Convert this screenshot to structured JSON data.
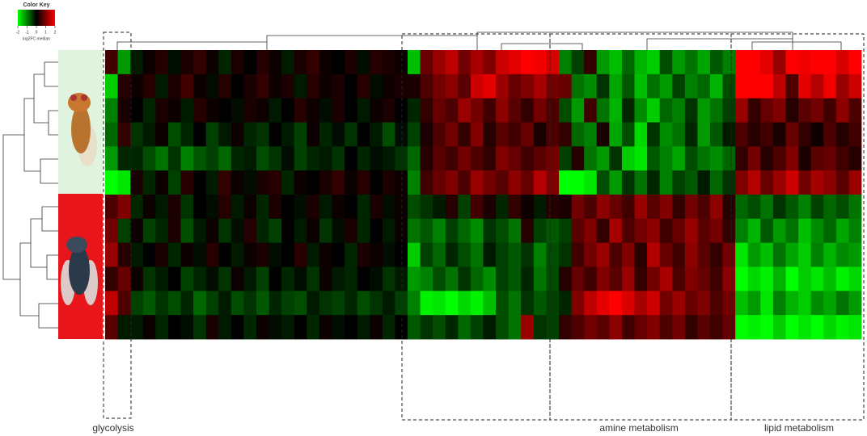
{
  "chart_data": {
    "type": "heatmap",
    "title": "Color Key",
    "colorbar_label": "log2FC median",
    "clim": [
      -2,
      2
    ],
    "cticks": [
      -2,
      -1,
      0,
      1,
      2
    ],
    "colors": {
      "low": "#00ff00",
      "mid": "#000000",
      "high": "#ff0000"
    },
    "annotations": [
      "glycolysis",
      "amine metabolism",
      "lipid metabolism"
    ],
    "matrix": [
      [
        0.5,
        -1.2,
        -0.2,
        0.1,
        0.3,
        -0.1,
        0.2,
        0.4,
        0.1,
        -0.3,
        0.2,
        0.0,
        0.3,
        0.1,
        -0.2,
        0.2,
        0.4,
        0.1,
        0.0,
        0.2,
        -0.1,
        0.3,
        0.2,
        0.1,
        -1.5,
        0.8,
        1.2,
        1.5,
        0.9,
        1.3,
        1.0,
        1.6,
        1.8,
        2.0,
        1.9,
        1.7,
        -1.0,
        -0.5,
        0.4,
        -1.2,
        -1.5,
        -0.8,
        -1.4,
        -1.6,
        -0.6,
        -1.2,
        -0.9,
        -1.3,
        -0.7,
        -1.0,
        2.0,
        2.0,
        1.8,
        1.2,
        2.0,
        1.9,
        2.0,
        2.0,
        1.7,
        2.0
      ],
      [
        -1.6,
        0.3,
        0.1,
        0.3,
        -0.2,
        0.2,
        0.5,
        0.1,
        -0.1,
        0.3,
        0.0,
        0.2,
        0.4,
        0.1,
        0.2,
        -0.2,
        0.3,
        0.1,
        0.2,
        0.0,
        0.3,
        -0.1,
        0.1,
        0.2,
        0.2,
        0.6,
        0.9,
        1.1,
        0.7,
        1.6,
        1.8,
        1.2,
        0.8,
        1.0,
        1.3,
        0.9,
        0.8,
        -0.9,
        -1.1,
        -0.4,
        -1.3,
        -0.7,
        -1.5,
        -0.9,
        -1.2,
        -0.5,
        -1.0,
        -0.8,
        -1.4,
        -0.6,
        2.0,
        2.0,
        2.0,
        1.5,
        0.6,
        1.8,
        1.4,
        1.9,
        1.2,
        1.6
      ],
      [
        -1.0,
        0.2,
        0.0,
        -0.3,
        0.2,
        0.1,
        -0.2,
        0.3,
        0.1,
        0.0,
        -0.1,
        0.2,
        0.1,
        -0.2,
        0.0,
        0.3,
        0.1,
        -0.1,
        0.2,
        0.0,
        -0.2,
        0.1,
        0.2,
        0.0,
        -0.3,
        0.4,
        0.8,
        0.6,
        1.2,
        0.9,
        0.5,
        1.1,
        0.7,
        0.4,
        0.9,
        0.6,
        -0.6,
        -1.2,
        0.5,
        -0.9,
        -1.4,
        -0.3,
        -1.1,
        -1.6,
        -0.8,
        -1.0,
        -0.4,
        -1.2,
        -0.9,
        -0.5,
        1.2,
        0.4,
        0.8,
        1.0,
        0.3,
        0.7,
        0.9,
        0.5,
        1.1,
        0.6
      ],
      [
        -0.8,
        0.4,
        -0.4,
        -0.2,
        0.1,
        -0.6,
        -0.3,
        0.0,
        -0.5,
        -0.2,
        0.1,
        -0.3,
        -0.4,
        0.0,
        -0.2,
        -0.5,
        0.1,
        -0.3,
        -0.1,
        -0.4,
        0.0,
        -0.2,
        -0.6,
        -0.1,
        -0.5,
        0.2,
        0.6,
        0.9,
        0.4,
        1.0,
        0.3,
        0.7,
        0.5,
        0.8,
        0.2,
        0.6,
        0.4,
        -0.8,
        -1.0,
        0.2,
        -1.3,
        -0.6,
        -1.7,
        -0.4,
        -1.1,
        -0.9,
        -0.3,
        -1.2,
        -0.7,
        -0.2,
        0.6,
        0.3,
        0.5,
        0.2,
        0.8,
        0.4,
        0.1,
        0.6,
        0.3,
        0.5
      ],
      [
        -1.2,
        -0.3,
        -0.3,
        -0.6,
        -0.9,
        -0.4,
        -1.0,
        -0.7,
        -0.5,
        -0.8,
        -0.3,
        -0.2,
        -0.6,
        -0.4,
        -0.1,
        -0.5,
        -0.3,
        -0.2,
        -0.4,
        0.0,
        -0.3,
        -0.1,
        -0.2,
        -0.4,
        -0.8,
        0.3,
        0.7,
        0.5,
        0.9,
        0.6,
        0.4,
        1.0,
        0.8,
        0.5,
        0.7,
        0.9,
        -0.5,
        0.3,
        -0.9,
        -1.2,
        -0.4,
        -1.6,
        -1.8,
        -0.7,
        -1.0,
        -1.3,
        -0.6,
        -0.9,
        -1.1,
        -0.8,
        0.4,
        0.9,
        0.3,
        0.6,
        1.0,
        0.2,
        0.7,
        0.8,
        0.5,
        0.3
      ],
      [
        -2.0,
        -1.8,
        0.2,
        -0.3,
        0.1,
        -0.5,
        0.3,
        0.0,
        -0.2,
        0.4,
        0.1,
        -0.1,
        0.2,
        0.3,
        -0.3,
        0.1,
        0.0,
        0.2,
        0.4,
        0.1,
        0.3,
        0.0,
        0.2,
        0.1,
        -1.0,
        0.5,
        0.8,
        1.0,
        0.6,
        1.2,
        0.9,
        0.7,
        1.1,
        0.8,
        1.4,
        1.0,
        -2.0,
        -2.0,
        -1.8,
        -0.6,
        -1.2,
        -0.4,
        -0.9,
        -0.3,
        -1.0,
        -0.5,
        -0.7,
        -0.2,
        -0.8,
        -0.4,
        1.0,
        1.4,
        0.8,
        1.2,
        1.6,
        0.9,
        1.3,
        1.1,
        0.7,
        1.2
      ],
      [
        0.6,
        1.0,
        -0.3,
        0.1,
        -0.2,
        0.2,
        -0.4,
        0.0,
        -0.1,
        0.3,
        -0.2,
        0.1,
        -0.3,
        0.2,
        0.0,
        -0.1,
        0.2,
        -0.2,
        0.1,
        0.0,
        -0.3,
        0.2,
        -0.1,
        0.1,
        -0.6,
        -0.4,
        -0.2,
        0.3,
        -0.5,
        0.5,
        0.2,
        -0.3,
        0.4,
        0.1,
        -0.2,
        0.3,
        0.2,
        0.9,
        0.6,
        1.1,
        0.8,
        0.5,
        1.2,
        0.7,
        1.0,
        0.4,
        0.9,
        0.6,
        1.1,
        0.3,
        -0.8,
        -0.6,
        -0.9,
        -0.4,
        -0.7,
        -1.0,
        -0.5,
        -0.8,
        -0.6,
        -0.9
      ],
      [
        0.9,
        -0.5,
        0.1,
        -0.5,
        -0.3,
        0.2,
        -0.6,
        -0.2,
        0.1,
        -0.4,
        -0.1,
        0.3,
        -0.3,
        -0.5,
        0.0,
        -0.2,
        0.1,
        -0.4,
        -0.1,
        0.2,
        -0.3,
        0.0,
        -0.2,
        0.1,
        -0.9,
        -0.7,
        -1.0,
        -0.5,
        -0.8,
        -1.1,
        -0.4,
        -0.6,
        -0.9,
        0.3,
        -0.5,
        -0.7,
        -0.5,
        0.7,
        1.0,
        0.4,
        1.3,
        0.6,
        0.9,
        1.1,
        0.5,
        0.8,
        1.2,
        0.7,
        0.9,
        0.4,
        -1.0,
        -1.4,
        -0.7,
        -1.2,
        -0.9,
        -1.5,
        -1.1,
        -0.8,
        -1.3,
        -1.0
      ],
      [
        1.2,
        0.3,
        -0.2,
        0.0,
        0.2,
        -0.3,
        0.1,
        -0.1,
        0.3,
        0.0,
        -0.2,
        0.1,
        0.2,
        -0.1,
        0.0,
        0.3,
        -0.2,
        0.1,
        0.0,
        -0.3,
        0.2,
        0.1,
        -0.1,
        0.0,
        -1.6,
        -0.5,
        -0.8,
        -0.3,
        -0.6,
        -0.9,
        -0.2,
        -0.5,
        -0.7,
        -0.4,
        -1.0,
        -0.6,
        -0.4,
        0.5,
        0.9,
        1.2,
        0.6,
        1.0,
        0.3,
        1.4,
        0.8,
        0.5,
        1.1,
        0.7,
        0.4,
        0.9,
        -1.8,
        -1.2,
        -1.5,
        -0.9,
        -1.3,
        -1.6,
        -1.0,
        -1.4,
        -1.1,
        -1.2
      ],
      [
        0.4,
        0.8,
        0.1,
        -0.4,
        -0.2,
        0.0,
        -0.5,
        -0.3,
        -0.1,
        -0.4,
        0.1,
        -0.2,
        -0.5,
        0.0,
        -0.3,
        -0.1,
        -0.4,
        0.1,
        -0.2,
        -0.3,
        0.0,
        -0.1,
        -0.4,
        -0.2,
        -1.2,
        -1.0,
        -0.6,
        -0.9,
        -0.4,
        -0.8,
        -1.1,
        -0.5,
        -0.7,
        -0.3,
        -0.9,
        -0.6,
        0.3,
        0.8,
        0.5,
        1.0,
        0.7,
        1.2,
        0.4,
        0.9,
        1.3,
        0.6,
        1.0,
        0.8,
        0.5,
        1.1,
        -2.0,
        -1.7,
        -1.9,
        -1.4,
        -2.0,
        -1.6,
        -1.8,
        -1.5,
        -1.9,
        -1.7
      ],
      [
        1.5,
        0.6,
        -0.5,
        -0.7,
        -0.4,
        -0.6,
        -0.3,
        -0.8,
        -0.5,
        -0.2,
        -0.6,
        -0.4,
        -0.7,
        -0.3,
        -0.5,
        -0.6,
        -0.2,
        -0.4,
        -0.5,
        -0.3,
        -0.6,
        -0.4,
        -0.2,
        -0.5,
        -1.0,
        -1.9,
        -1.8,
        -2.0,
        -1.7,
        -1.9,
        -1.5,
        -0.6,
        -0.9,
        -0.4,
        -0.7,
        -0.5,
        -0.3,
        1.0,
        1.5,
        1.8,
        2.0,
        1.7,
        1.3,
        1.6,
        0.9,
        1.2,
        0.8,
        1.0,
        0.6,
        0.9,
        -1.5,
        -1.2,
        -1.8,
        -1.0,
        -1.4,
        -1.6,
        -1.1,
        -1.3,
        -0.9,
        -1.2
      ],
      [
        0.7,
        -0.2,
        -0.2,
        0.1,
        -0.3,
        0.0,
        -0.1,
        -0.4,
        0.2,
        -0.2,
        0.0,
        -0.3,
        0.1,
        -0.1,
        -0.2,
        0.0,
        -0.3,
        0.1,
        -0.1,
        0.0,
        -0.2,
        0.1,
        -0.3,
        0.0,
        -0.7,
        -0.4,
        -0.6,
        -0.3,
        -0.8,
        -0.5,
        -0.2,
        -0.6,
        -0.9,
        1.2,
        -0.4,
        -0.5,
        0.4,
        0.6,
        0.9,
        0.7,
        1.1,
        0.5,
        0.8,
        1.0,
        0.6,
        0.9,
        0.4,
        0.7,
        0.5,
        0.8,
        -2.0,
        -1.9,
        -2.0,
        -1.6,
        -2.0,
        -1.8,
        -2.0,
        -1.7,
        -1.9,
        -1.8
      ]
    ]
  }
}
